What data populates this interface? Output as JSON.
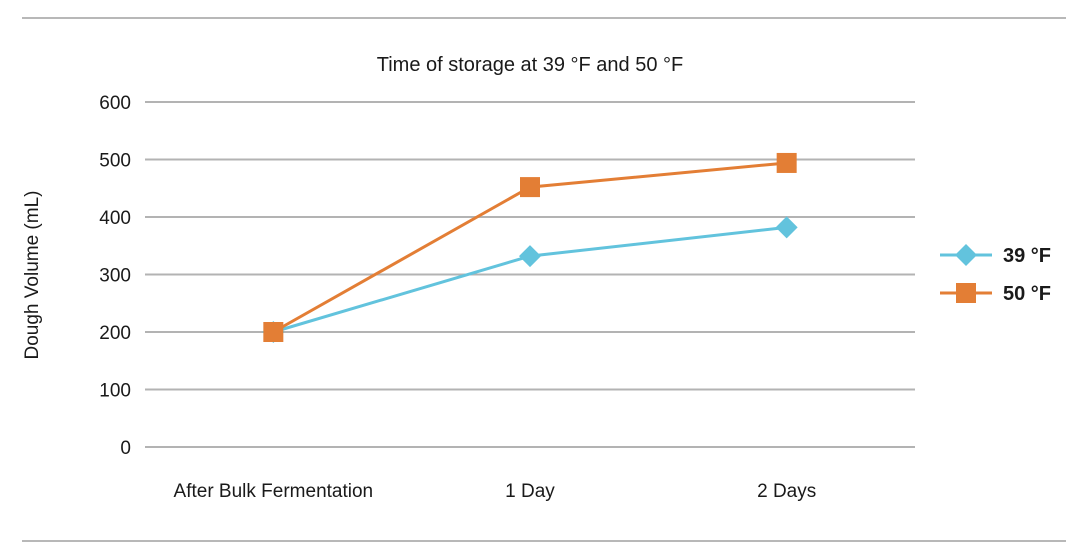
{
  "chart_data": {
    "type": "line",
    "title": "Time of storage at 39 °F and 50 °F",
    "xlabel": "",
    "ylabel": "Dough Volume (mL)",
    "categories": [
      "After Bulk Fermentation",
      "1 Day",
      "2 Days"
    ],
    "ylim": [
      0,
      600
    ],
    "yticks": [
      0,
      100,
      200,
      300,
      400,
      500,
      600
    ],
    "grid": true,
    "legend_position": "right",
    "series": [
      {
        "name": "39 °F",
        "values": [
          200,
          332,
          382
        ],
        "color": "#62c3dd",
        "marker": "diamond"
      },
      {
        "name": "50 °F",
        "values": [
          200,
          452,
          494
        ],
        "color": "#e37e35",
        "marker": "square"
      }
    ]
  }
}
